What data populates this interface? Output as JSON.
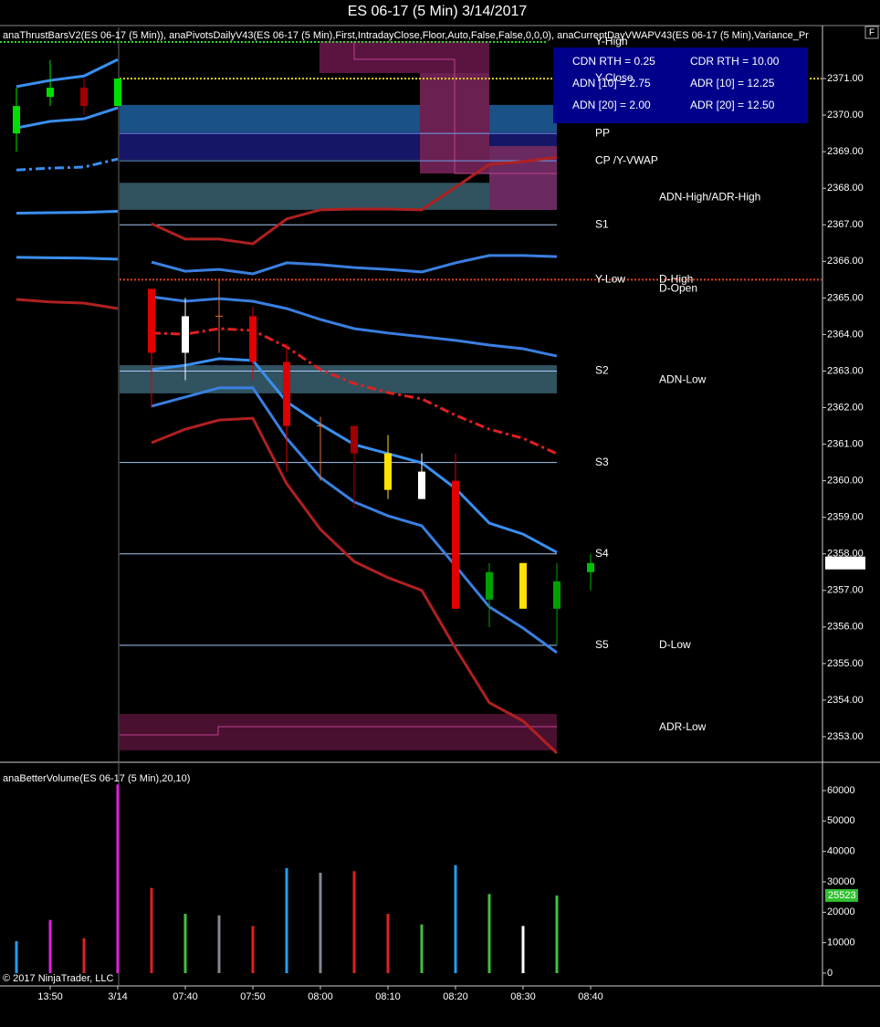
{
  "window": {
    "button": "F",
    "copyright": "© 2017 NinjaTrader, LLC"
  },
  "chart_data": [
    {
      "type": "candlestick",
      "title": "ES 06-17 (5 Min)  3/14/2017",
      "subtitle": "anaThrustBarsV2(ES 06-17 (5 Min)), anaPivotsDailyV43(ES 06-17 (5 Min),First,IntradayClose,Floor,Auto,False,False,0,0,0), anaCurrentDayVWAPV43(ES 06-17 (5 Min),Variance_Pr",
      "categories": [
        null,
        "13:50",
        null,
        "3/14",
        null,
        "07:40",
        null,
        "07:50",
        null,
        "08:00",
        null,
        "08:10",
        null,
        "08:20",
        null,
        "08:30",
        null,
        "08:40"
      ],
      "open": [
        2369.5,
        2370.5,
        2370.75,
        2370.25,
        2365.25,
        2363.5,
        2364.5,
        2364.5,
        2363.25,
        2361.5,
        2361.5,
        2360.75,
        2359.5,
        2360.0,
        2356.75,
        2357.75,
        2356.5,
        2357.5
      ],
      "high": [
        2370.75,
        2371.5,
        2371.0,
        2371.0,
        2365.25,
        2365.0,
        2365.5,
        2364.75,
        2363.75,
        2361.75,
        2361.5,
        2361.25,
        2360.75,
        2360.75,
        2357.75,
        2357.75,
        2357.75,
        2358.0
      ],
      "low": [
        2369.0,
        2370.25,
        2370.0,
        2370.25,
        2362.0,
        2362.75,
        2363.5,
        2362.75,
        2360.25,
        2360.0,
        2359.25,
        2359.5,
        2359.5,
        2356.5,
        2356.0,
        2356.5,
        2355.5,
        2357.0
      ],
      "close": [
        2370.25,
        2370.75,
        2370.25,
        2371.0,
        2363.5,
        2364.5,
        2364.5,
        2363.25,
        2361.5,
        2361.5,
        2360.75,
        2359.75,
        2360.25,
        2356.5,
        2357.5,
        2356.5,
        2357.25,
        2357.75
      ],
      "colors": [
        "#00e000",
        "#00e000",
        "#a00000",
        "#00e000",
        "#e00000",
        "#ffffff",
        "#e07030",
        "#e00000",
        "#e00000",
        "#e07030",
        "#a00000",
        "#ffe000",
        "#ffffff",
        "#e00000",
        "#00a000",
        "#ffe000",
        "#00a000",
        "#00c000"
      ],
      "series": [
        {
          "color": "#3a8ff0",
          "style": "solid",
          "values": [
            2370.78,
            2370.95,
            2371.07,
            2371.52,
            null,
            null,
            null,
            null,
            null,
            null,
            null,
            null,
            null,
            null,
            null,
            null,
            null,
            null
          ]
        },
        {
          "color": "#3a8ff0",
          "style": "solid",
          "values": [
            2369.65,
            2369.83,
            2369.9,
            2370.2,
            null,
            null,
            null,
            null,
            null,
            null,
            null,
            null,
            null,
            null,
            null,
            null,
            null,
            null
          ]
        },
        {
          "color": "#3a8ff0",
          "style": "dashdot",
          "values": [
            2368.5,
            2368.55,
            2368.58,
            2368.8,
            null,
            null,
            null,
            null,
            null,
            null,
            null,
            null,
            null,
            null,
            null,
            null,
            null,
            null
          ]
        },
        {
          "color": "#3a8ff0",
          "style": "solid",
          "values": [
            2367.32,
            2367.33,
            2367.34,
            2367.37,
            null,
            null,
            null,
            null,
            null,
            null,
            null,
            null,
            null,
            null,
            null,
            null,
            null,
            null
          ]
        },
        {
          "color": "#3a8ff0",
          "style": "solid",
          "values": [
            2366.11,
            2366.1,
            2366.09,
            2366.06,
            null,
            null,
            null,
            null,
            null,
            null,
            null,
            null,
            null,
            null,
            null,
            null,
            null,
            null
          ]
        },
        {
          "color": "#b02020",
          "style": "solid",
          "values": [
            2364.96,
            2364.89,
            2364.86,
            2364.71,
            null,
            null,
            null,
            null,
            null,
            null,
            null,
            null,
            null,
            null,
            null,
            null,
            null,
            null
          ]
        },
        {
          "color": "#b02020",
          "style": "solid",
          "values": [
            null,
            null,
            null,
            null,
            2367.03,
            2366.61,
            2366.61,
            2366.48,
            2367.16,
            2367.41,
            2367.43,
            2367.43,
            2367.41,
            2368.03,
            2368.65,
            2368.73,
            2368.85,
            null
          ]
        },
        {
          "color": "#3a7fe0",
          "style": "solid",
          "values": [
            null,
            null,
            null,
            null,
            2365.98,
            2365.73,
            2365.78,
            2365.66,
            2365.96,
            2365.91,
            2365.83,
            2365.78,
            2365.71,
            2365.96,
            2366.16,
            2366.16,
            2366.13,
            null
          ]
        },
        {
          "color": "#3a7fe0",
          "style": "solid",
          "values": [
            null,
            null,
            null,
            null,
            2365.03,
            2364.91,
            2364.98,
            2364.91,
            2364.71,
            2364.41,
            2364.16,
            2364.04,
            2363.94,
            2363.84,
            2363.71,
            2363.61,
            2363.41,
            null
          ]
        },
        {
          "color": "#3a8ff0",
          "style": "solid",
          "values": [
            null,
            null,
            null,
            null,
            2363.04,
            2363.16,
            2363.34,
            2363.29,
            2362.16,
            2361.54,
            2360.99,
            2360.74,
            2360.49,
            2359.79,
            2358.84,
            2358.54,
            2358.04,
            null
          ]
        },
        {
          "color": "#3a7fe0",
          "style": "solid",
          "values": [
            null,
            null,
            null,
            null,
            2362.04,
            2362.29,
            2362.54,
            2362.54,
            2361.16,
            2360.09,
            2359.42,
            2359.04,
            2358.77,
            2357.67,
            2356.55,
            2355.97,
            2355.3,
            null
          ]
        },
        {
          "color": "#b02020",
          "style": "solid",
          "values": [
            null,
            null,
            null,
            null,
            2361.04,
            2361.41,
            2361.66,
            2361.71,
            2359.92,
            2358.67,
            2357.79,
            2357.35,
            2357.0,
            2355.42,
            2353.93,
            2353.43,
            2352.55,
            null
          ]
        },
        {
          "color": "#e02020",
          "style": "dashdot",
          "values": [
            null,
            null,
            null,
            null,
            2364.04,
            2364.01,
            2364.16,
            2364.11,
            2363.66,
            2363.04,
            2362.66,
            2362.41,
            2362.24,
            2361.79,
            2361.41,
            2361.16,
            2360.74,
            null
          ]
        }
      ],
      "zones": [
        {
          "low": 2369.53,
          "high": 2370.28,
          "color": "#1f5f9f"
        },
        {
          "low": 2368.78,
          "high": 2369.53,
          "color": "#1a1a78"
        },
        {
          "low": 2367.41,
          "high": 2368.15,
          "color": "#3a6070"
        },
        {
          "low": 2362.39,
          "high": 2363.16,
          "color": "#3a6070"
        }
      ],
      "pivot_levels": [
        {
          "label": "Y-High",
          "value": 2372.0,
          "color": "#30d030",
          "style": "dotted"
        },
        {
          "label": "Y-Close",
          "value": 2371.0,
          "color": "#e0d020",
          "style": "dotted"
        },
        {
          "label": "PP",
          "value": 2369.5,
          "color": "#6aa0f0",
          "style": "solid"
        },
        {
          "label": "CP /Y-VWAP",
          "value": 2368.75,
          "color": "#6aa0f0",
          "style": "solid"
        },
        {
          "label": "S1",
          "value": 2367.0,
          "color": "#a8c8f8",
          "style": "solid"
        },
        {
          "label": "Y-Low",
          "value": 2365.5,
          "color": "#e04020",
          "style": "dotted"
        },
        {
          "label": "S2",
          "value": 2363.0,
          "color": "#a8c8f8",
          "style": "solid"
        },
        {
          "label": "S3",
          "value": 2360.5,
          "color": "#a8c8f8",
          "style": "solid"
        },
        {
          "label": "S4",
          "value": 2358.0,
          "color": "#a8c8f8",
          "style": "solid"
        },
        {
          "label": "S5",
          "value": 2355.5,
          "color": "#a8c8f8",
          "style": "solid"
        }
      ],
      "range_levels": [
        {
          "label": "ADN-High/ADR-High",
          "value": 2367.75,
          "color": "#e03080"
        },
        {
          "label": "D-High",
          "value": 2365.5,
          "color": "#30d030"
        },
        {
          "label": "D-Open",
          "value": 2365.25,
          "color": "#e090e0"
        },
        {
          "label": "ADN-Low",
          "value": 2362.75,
          "color": "#80b0f0"
        },
        {
          "label": "D-Low",
          "value": 2355.5,
          "color": "#e02020"
        },
        {
          "label": "ADR-Low",
          "value": 2353.25,
          "color": "#d03080"
        }
      ],
      "stats": [
        [
          "CDN RTH = 0.25",
          "CDR RTH = 10.00"
        ],
        [
          "ADN [10] = 2.75",
          "ADR [10] = 12.25"
        ],
        [
          "ADN [20] = 2.00",
          "ADR [20] = 12.50"
        ]
      ],
      "ylim": [
        2352.3,
        2372.4
      ],
      "yticks": [
        {
          "value": 2353,
          "label": "2353.00"
        },
        {
          "value": 2354,
          "label": "2354.00"
        },
        {
          "value": 2355,
          "label": "2355.00"
        },
        {
          "value": 2356,
          "label": "2356.00"
        },
        {
          "value": 2357,
          "label": "2357.00"
        },
        {
          "value": 2358,
          "label": "2358.00"
        },
        {
          "value": 2359,
          "label": "2359.00"
        },
        {
          "value": 2360,
          "label": "2360.00"
        },
        {
          "value": 2361,
          "label": "2361.00"
        },
        {
          "value": 2362,
          "label": "2362.00"
        },
        {
          "value": 2363,
          "label": "2363.00"
        },
        {
          "value": 2364,
          "label": "2364.00"
        },
        {
          "value": 2365,
          "label": "2365.00"
        },
        {
          "value": 2366,
          "label": "2366.00"
        },
        {
          "value": 2367,
          "label": "2367.00"
        },
        {
          "value": 2368,
          "label": "2368.00"
        },
        {
          "value": 2369,
          "label": "2369.00"
        },
        {
          "value": 2370,
          "label": "2370.00"
        },
        {
          "value": 2371,
          "label": "2371.00"
        }
      ]
    },
    {
      "type": "bar",
      "title": "anaBetterVolume(ES 06-17 (5 Min),20,10)",
      "values": [
        10500,
        17500,
        11500,
        62000,
        28000,
        19500,
        19000,
        15500,
        34500,
        33000,
        33500,
        19500,
        16000,
        35500,
        26000,
        15500,
        25523,
        null
      ],
      "colors": [
        "#20a0f0",
        "#e020e0",
        "#e02020",
        "#e020e0",
        "#e02020",
        "#40c040",
        "#808890",
        "#e02020",
        "#20a0f0",
        "#808890",
        "#e02020",
        "#e02020",
        "#40c040",
        "#20a0f0",
        "#40c040",
        "#ffffff",
        "#40c040",
        null
      ],
      "ylim": [
        -4200,
        67800
      ],
      "yticks": [
        0,
        10000,
        20000,
        30000,
        40000,
        50000,
        60000
      ]
    }
  ]
}
